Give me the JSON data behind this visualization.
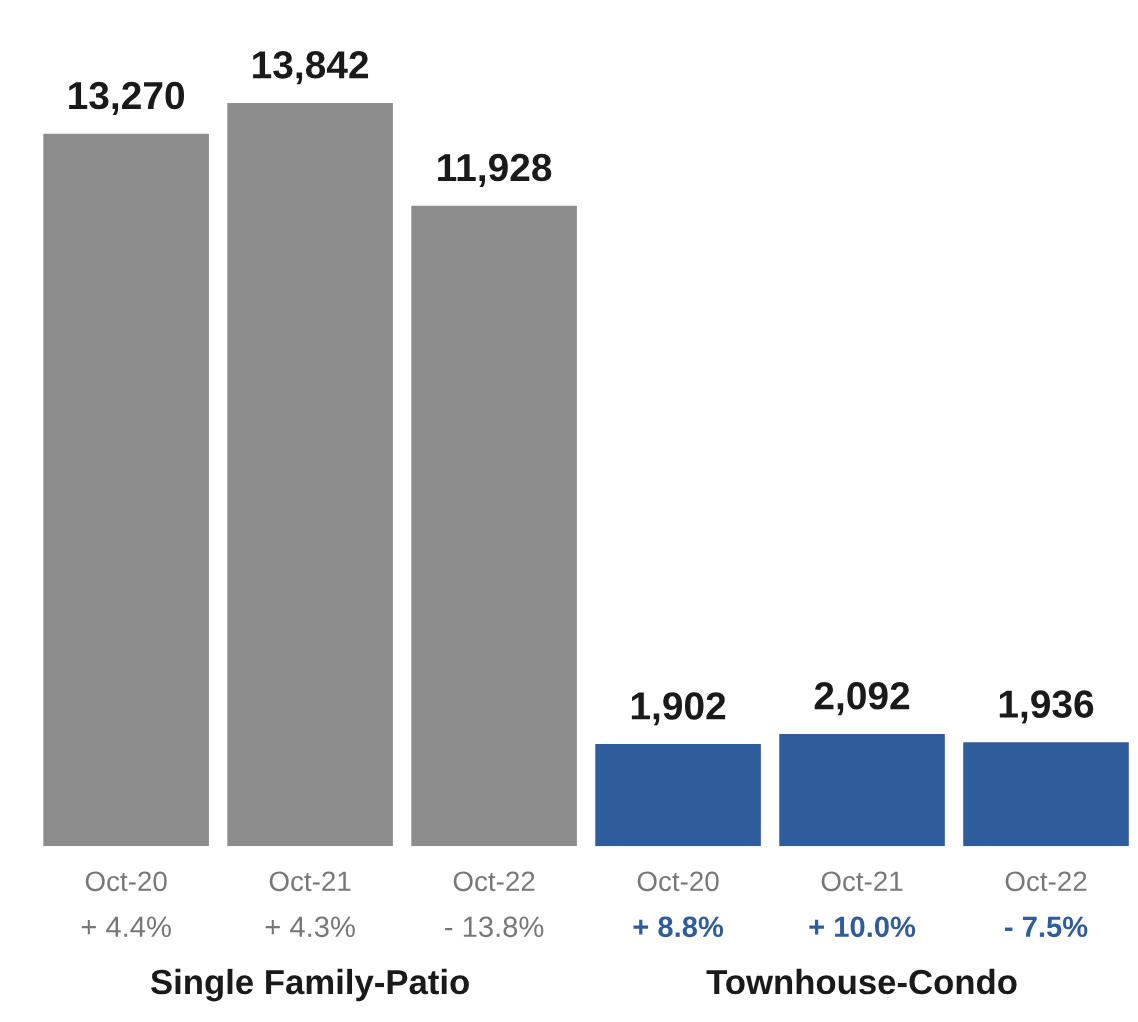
{
  "chart_data": {
    "type": "bar",
    "categories": [
      "Oct-20\n+ 4.4%",
      "Oct-21\n+ 4.3%",
      "Oct-22\n- 13.8%",
      "Oct-20\n+ 8.8%",
      "Oct-21\n+ 10.0%",
      "Oct-22\n- 7.5%"
    ],
    "values": [
      13270,
      13842,
      11928,
      1902,
      2092,
      1936
    ],
    "value_labels": [
      "13,270",
      "13,842",
      "11,928",
      "1,902",
      "2,092",
      "1,936"
    ],
    "colors": [
      "#8c8c8c",
      "#8c8c8c",
      "#8c8c8c",
      "#2f5d9b",
      "#2f5d9b",
      "#2f5d9b"
    ],
    "annotations": [
      "Single Family-Patio",
      "Townhouse-Condo"
    ]
  }
}
